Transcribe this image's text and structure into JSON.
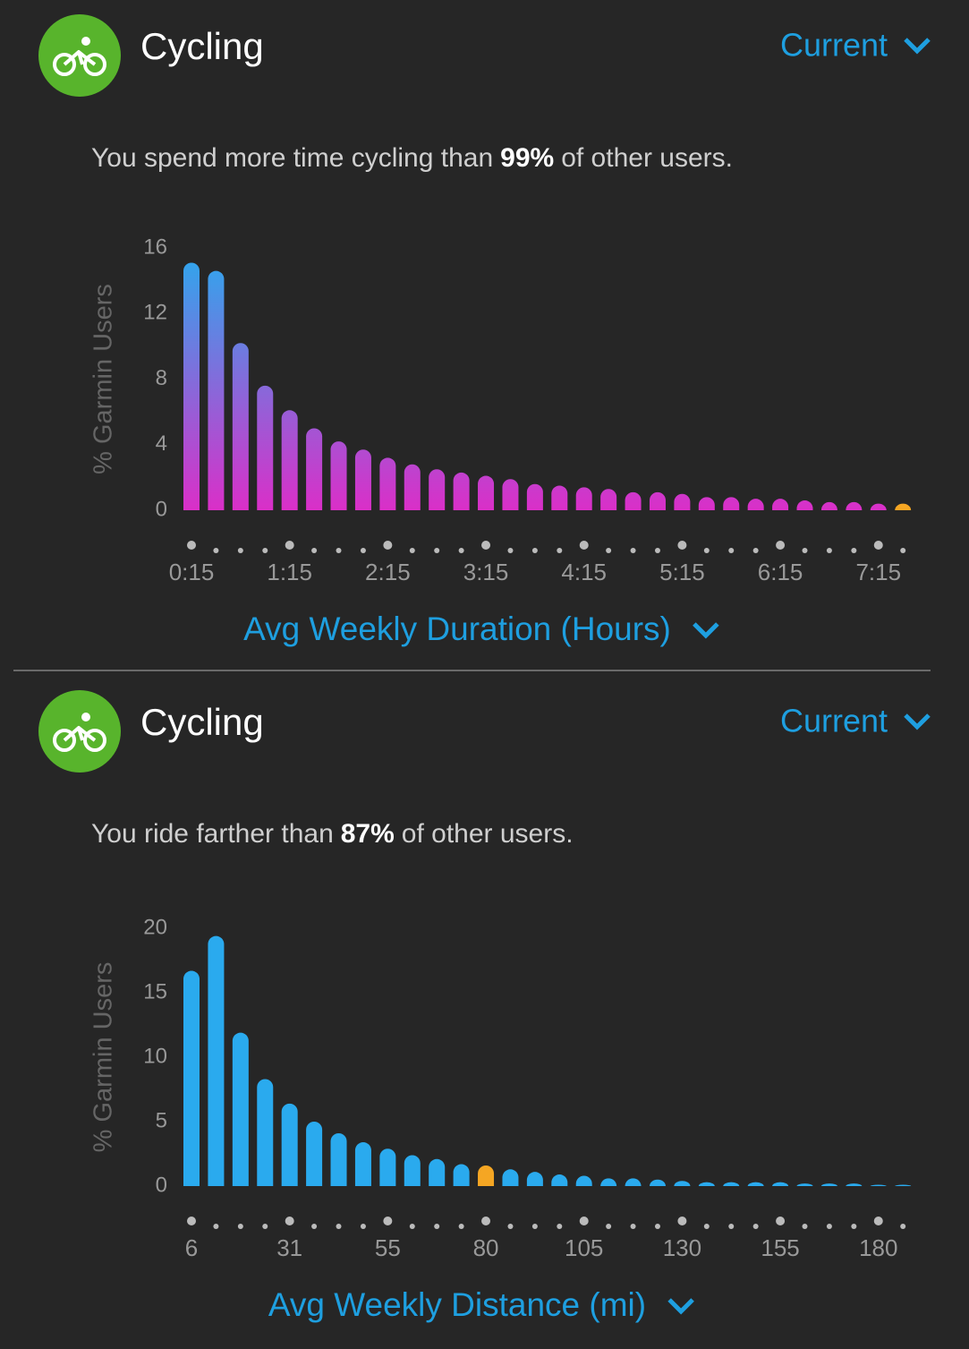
{
  "chart_data": [
    {
      "type": "bar",
      "title": "Cycling",
      "period": "Current",
      "subtitle": {
        "before": "You spend more time cycling than",
        "highlight": "99%",
        "after": "of other users."
      },
      "y_label": "% Garmin Users",
      "x_label": "Avg Weekly Duration (Hours)",
      "categories": [
        "0:15",
        null,
        null,
        null,
        "1:15",
        null,
        null,
        null,
        "2:15",
        null,
        null,
        null,
        "3:15",
        null,
        null,
        null,
        "4:15",
        null,
        null,
        null,
        "5:15",
        null,
        null,
        null,
        "6:15",
        null,
        null,
        null,
        "7:15",
        null
      ],
      "values": [
        15.1,
        14.6,
        10.2,
        7.6,
        6.1,
        5.0,
        4.2,
        3.7,
        3.2,
        2.8,
        2.5,
        2.3,
        2.1,
        1.9,
        1.6,
        1.5,
        1.4,
        1.3,
        1.1,
        1.1,
        1.0,
        0.8,
        0.8,
        0.7,
        0.7,
        0.6,
        0.5,
        0.5,
        0.4,
        0.4
      ],
      "gradient": [
        "#2aaaee",
        "#da2fc8"
      ],
      "highlight_index": 29,
      "highlight_color": "#f5a623",
      "ylim": [
        0,
        16
      ],
      "yticks": [
        0,
        4,
        8,
        12,
        16
      ]
    },
    {
      "type": "bar",
      "title": "Cycling",
      "period": "Current",
      "subtitle": {
        "before": "You ride farther than",
        "highlight": "87%",
        "after": "of other users."
      },
      "y_label": "% Garmin Users",
      "x_label": "Avg Weekly Distance (mi)",
      "categories": [
        "6",
        null,
        null,
        null,
        "31",
        null,
        null,
        null,
        "55",
        null,
        null,
        null,
        "80",
        null,
        null,
        null,
        "105",
        null,
        null,
        null,
        "130",
        null,
        null,
        null,
        "155",
        null,
        null,
        null,
        "180",
        null
      ],
      "values": [
        16.7,
        19.4,
        11.9,
        8.3,
        6.4,
        5.0,
        4.1,
        3.4,
        2.9,
        2.4,
        2.1,
        1.7,
        1.6,
        1.3,
        1.1,
        0.9,
        0.8,
        0.6,
        0.6,
        0.5,
        0.4,
        0.3,
        0.3,
        0.3,
        0.3,
        0.2,
        0.2,
        0.2,
        0.1,
        0.1
      ],
      "gradient": [
        "#2aaaee",
        "#da2fc8"
      ],
      "highlight_index": 12,
      "highlight_color": "#f5a623",
      "ylim": [
        0,
        20
      ],
      "yticks": [
        0,
        5,
        10,
        15,
        20
      ]
    }
  ]
}
